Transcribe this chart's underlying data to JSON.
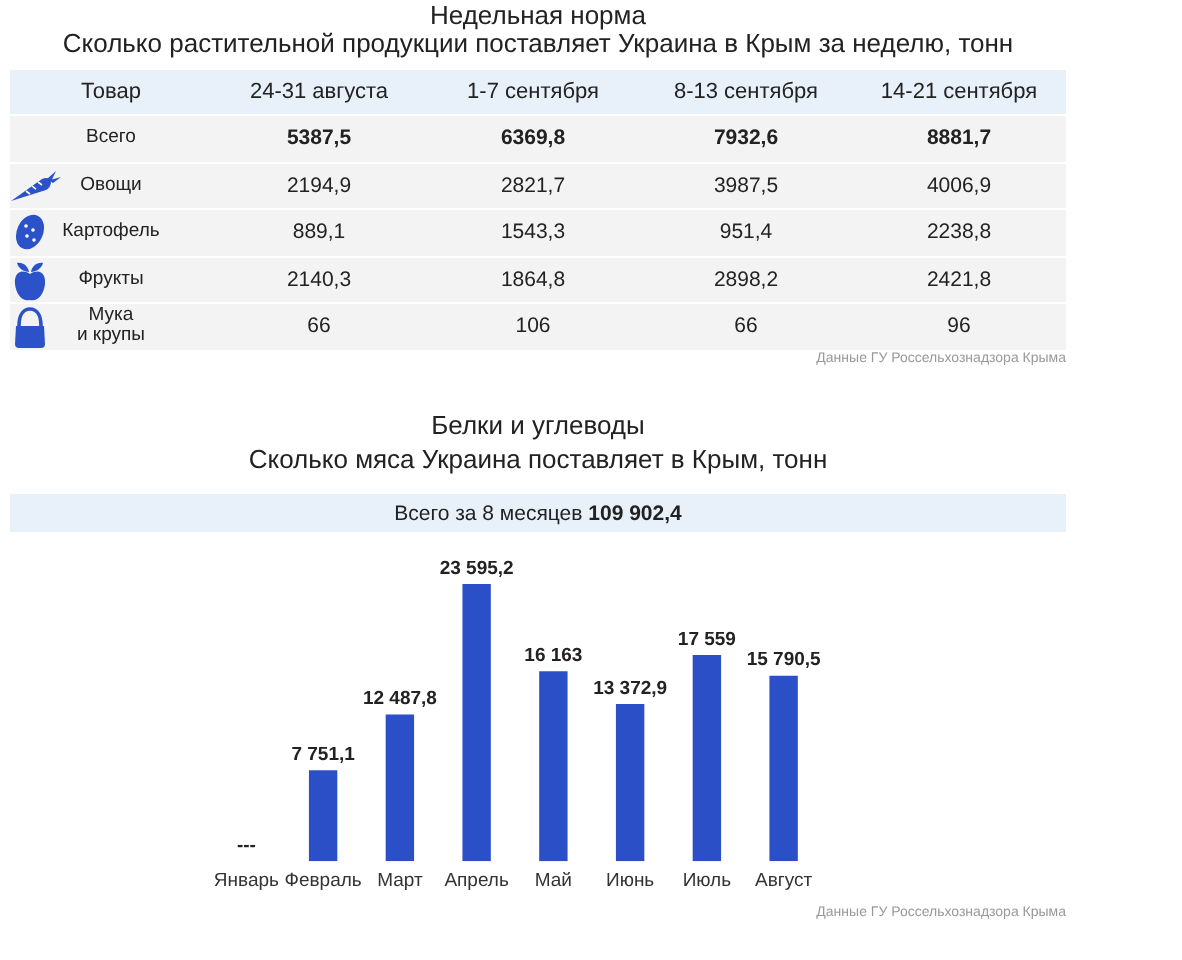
{
  "chart_data": [
    {
      "type": "other",
      "title": "Недельная норма",
      "subtitle": "Сколько растительной продукции поставляет Украина в Крым за неделю, тонн",
      "legend_title": "Товар",
      "categories": [
        "24-31 августа",
        "1-7 сентября",
        "8-13 сентября",
        "14-21 сентября"
      ],
      "series": [
        {
          "name": "Всего",
          "values": [
            5387.5,
            6369.8,
            7932.6,
            8881.7
          ],
          "value_labels": [
            "5387,5",
            "6369,8",
            "7932,6",
            "8881,7"
          ]
        },
        {
          "name": "Овощи",
          "values": [
            2194.9,
            2821.7,
            3987.5,
            4006.9
          ],
          "value_labels": [
            "2194,9",
            "2821,7",
            "3987,5",
            "4006,9"
          ]
        },
        {
          "name": "Картофель",
          "values": [
            889.1,
            1543.3,
            951.4,
            2238.8
          ],
          "value_labels": [
            "889,1",
            "1543,3",
            "951,4",
            "2238,8"
          ]
        },
        {
          "name": "Фрукты",
          "values": [
            2140.3,
            1864.8,
            2898.2,
            2421.8
          ],
          "value_labels": [
            "2140,3",
            "1864,8",
            "2898,2",
            "2421,8"
          ]
        },
        {
          "name": "Мука и крупы",
          "values": [
            66,
            106,
            66,
            96
          ],
          "value_labels": [
            "66",
            "106",
            "66",
            "96"
          ]
        }
      ],
      "annotations": [
        "Данные ГУ Россельхознадзора Крыма"
      ]
    },
    {
      "type": "bar",
      "title": "Белки и углеводы",
      "subtitle": "Сколько мяса Украина поставляет в Крым, тонн",
      "categories": [
        "Январь",
        "Февраль",
        "Март",
        "Апрель",
        "Май",
        "Июнь",
        "Июль",
        "Август"
      ],
      "values": [
        null,
        7751.1,
        12487.8,
        23595.2,
        16163,
        13372.9,
        17559,
        15790.5
      ],
      "value_labels": [
        "---",
        "7 751,1",
        "12 487,8",
        "23 595,2",
        "16 163",
        "13 372,9",
        "17 559",
        "15 790,5"
      ],
      "color": "#2b4fc6",
      "tick_labels": "x",
      "annotations": [
        "Всего за 8 месяцев",
        "109 902,4",
        "Данные ГУ Россельхознадзора Крыма"
      ]
    }
  ]
}
